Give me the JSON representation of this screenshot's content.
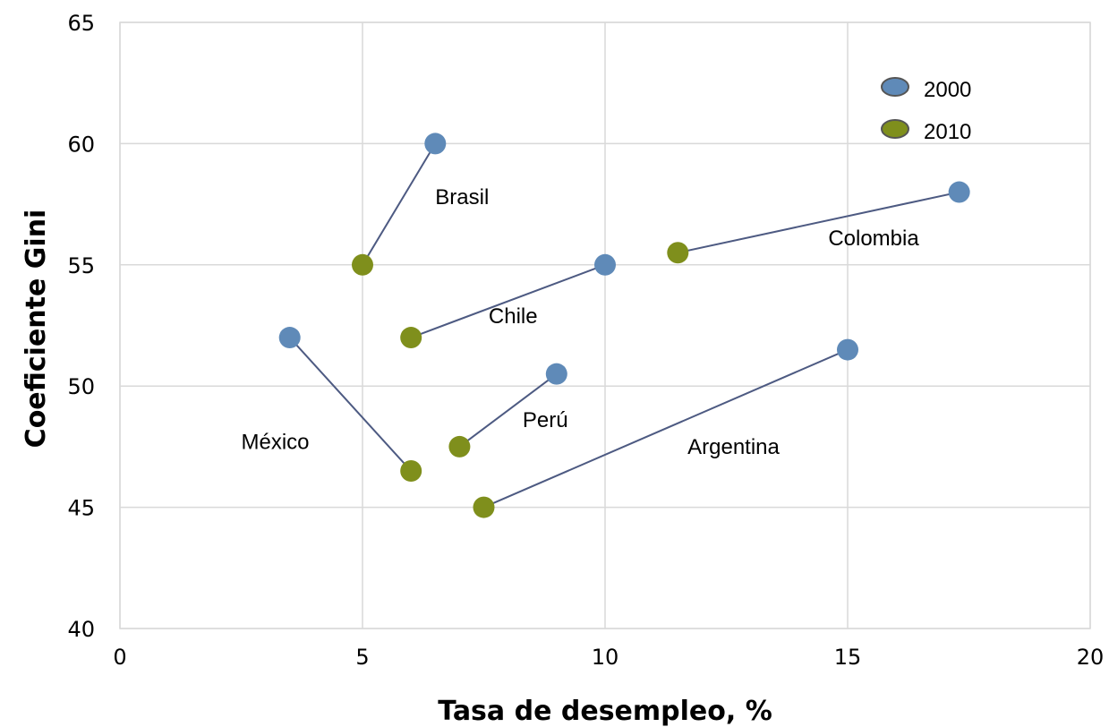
{
  "chart_data": {
    "type": "scatter",
    "xlabel": "Tasa de desempleo, %",
    "ylabel": "Coeficiente Gini",
    "xlim": [
      0,
      20
    ],
    "ylim": [
      40,
      65
    ],
    "xticks": [
      0,
      5,
      10,
      15,
      20
    ],
    "yticks": [
      40,
      45,
      50,
      55,
      60,
      65
    ],
    "grid": true,
    "legend_position": "top-right",
    "series": [
      {
        "name": "2000",
        "color": "#5f8ab8"
      },
      {
        "name": "2010",
        "color": "#7f8f1c"
      }
    ],
    "countries": [
      {
        "label": "Brasil",
        "x2000": 6.5,
        "y2000": 60,
        "x2010": 5,
        "y2010": 55
      },
      {
        "label": "Colombia",
        "x2000": 17.3,
        "y2000": 58,
        "x2010": 11.5,
        "y2010": 55.5
      },
      {
        "label": "Chile",
        "x2000": 10,
        "y2000": 55,
        "x2010": 6,
        "y2010": 52
      },
      {
        "label": "México",
        "x2000": 3.5,
        "y2000": 52,
        "x2010": 6,
        "y2010": 46.5
      },
      {
        "label": "Perú",
        "x2000": 9,
        "y2000": 50.5,
        "x2010": 7,
        "y2010": 47.5
      },
      {
        "label": "Argentina",
        "x2000": 15,
        "y2000": 51.5,
        "x2010": 7.5,
        "y2010": 45
      }
    ],
    "line_color": "#4d5a82"
  }
}
